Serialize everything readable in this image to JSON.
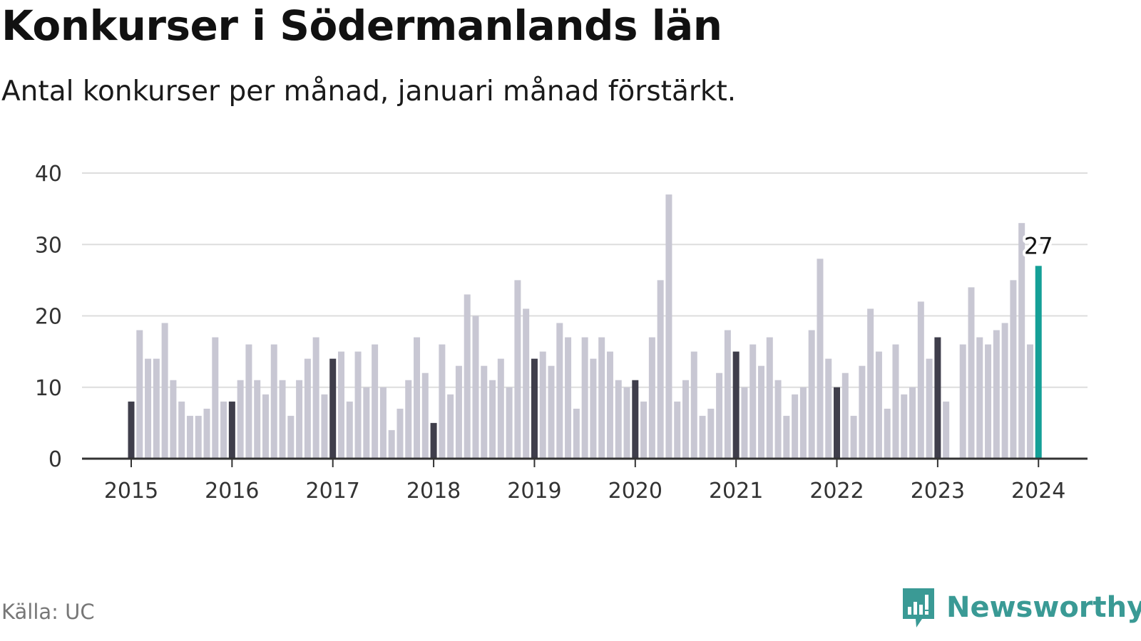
{
  "title": "Konkurser i Södermanlands län",
  "subtitle": "Antal konkurser per månad, januari månad förstärkt.",
  "source": "Källa: UC",
  "brand": "Newsworthy",
  "colors": {
    "bar_regular": "#c8c7d3",
    "bar_january": "#3f3e4b",
    "bar_latest": "#15a097",
    "grid": "#dddddd",
    "axis": "#333333",
    "brand": "#3a9a95"
  },
  "chart_data": {
    "type": "bar",
    "title": "Konkurser i Södermanlands län",
    "subtitle": "Antal konkurser per månad, januari månad förstärkt.",
    "xlabel": "",
    "ylabel": "",
    "ylim": [
      0,
      40
    ],
    "yticks": [
      0,
      10,
      20,
      30,
      40
    ],
    "xticks": [
      "2015",
      "2016",
      "2017",
      "2018",
      "2019",
      "2020",
      "2021",
      "2022",
      "2023",
      "2024"
    ],
    "grid": true,
    "start": "2015-01",
    "highlight": "January bars darker; latest month in teal",
    "annotation": {
      "month": "2024-01",
      "text": "27"
    },
    "values": [
      8,
      18,
      14,
      14,
      19,
      11,
      8,
      6,
      6,
      7,
      17,
      8,
      8,
      11,
      16,
      11,
      9,
      16,
      11,
      6,
      11,
      14,
      17,
      9,
      14,
      15,
      8,
      15,
      10,
      16,
      10,
      4,
      7,
      11,
      17,
      12,
      5,
      16,
      9,
      13,
      23,
      20,
      13,
      11,
      14,
      10,
      25,
      21,
      14,
      15,
      13,
      19,
      17,
      7,
      17,
      14,
      17,
      15,
      11,
      10,
      11,
      8,
      17,
      25,
      37,
      8,
      11,
      15,
      6,
      7,
      12,
      18,
      15,
      10,
      16,
      13,
      17,
      11,
      6,
      9,
      10,
      18,
      28,
      14,
      10,
      12,
      6,
      13,
      21,
      15,
      7,
      16,
      9,
      10,
      22,
      14,
      17,
      8,
      0,
      16,
      24,
      17,
      16,
      18,
      19,
      25,
      33,
      16,
      27
    ]
  }
}
